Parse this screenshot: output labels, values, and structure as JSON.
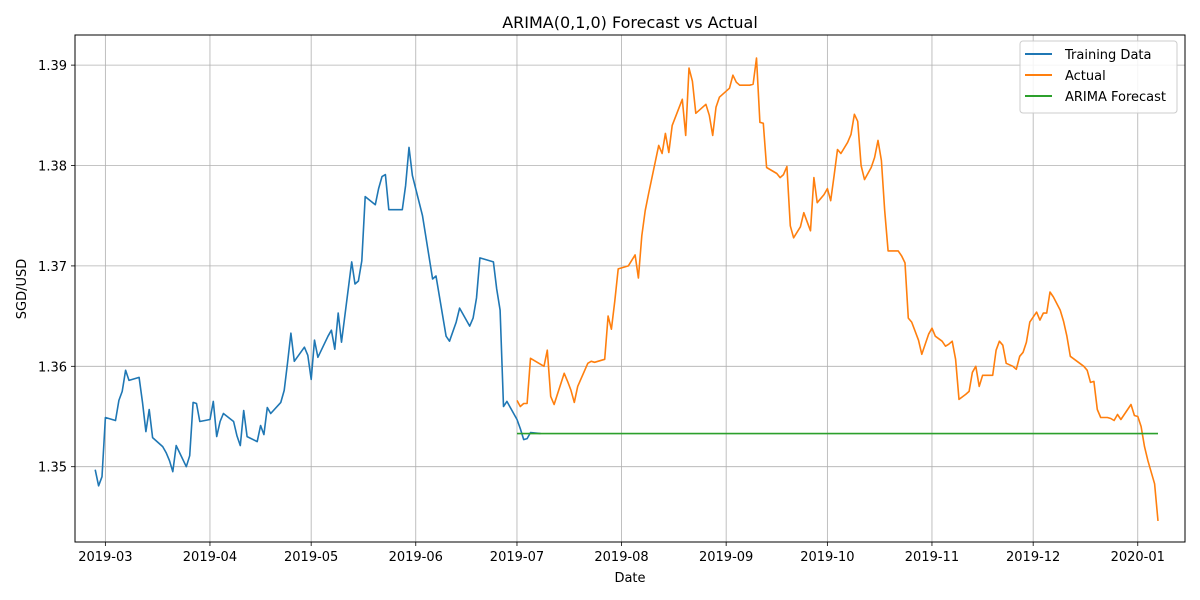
{
  "chart_data": {
    "type": "line",
    "title": "ARIMA(0,1,0) Forecast vs Actual",
    "xlabel": "Date",
    "ylabel": "SGD/USD",
    "xlim": [
      "2019-02-20",
      "2020-01-15"
    ],
    "ylim": [
      1.3425,
      1.393
    ],
    "grid": true,
    "legend_position": "top-right",
    "x_ticks": [
      "2019-03-01",
      "2019-04-01",
      "2019-05-01",
      "2019-06-01",
      "2019-07-01",
      "2019-08-01",
      "2019-09-01",
      "2019-10-01",
      "2019-11-01",
      "2019-12-01",
      "2020-01-01"
    ],
    "x_tick_labels": [
      "2019-03",
      "2019-04",
      "2019-05",
      "2019-06",
      "2019-07",
      "2019-08",
      "2019-09",
      "2019-10",
      "2019-11",
      "2019-12",
      "2020-01"
    ],
    "y_ticks": [
      1.35,
      1.36,
      1.37,
      1.38,
      1.39
    ],
    "y_tick_labels": [
      "1.35",
      "1.36",
      "1.37",
      "1.38",
      "1.39"
    ],
    "series": [
      {
        "name": "Training Data",
        "color": "#1f77b4",
        "points": [
          [
            "2019-02-26",
            1.3497
          ],
          [
            "2019-02-27",
            1.3481
          ],
          [
            "2019-02-28",
            1.349
          ],
          [
            "2019-03-01",
            1.3549
          ],
          [
            "2019-03-04",
            1.3546
          ],
          [
            "2019-03-05",
            1.3566
          ],
          [
            "2019-03-06",
            1.3575
          ],
          [
            "2019-03-07",
            1.3596
          ],
          [
            "2019-03-08",
            1.3586
          ],
          [
            "2019-03-11",
            1.3589
          ],
          [
            "2019-03-12",
            1.3564
          ],
          [
            "2019-03-13",
            1.3535
          ],
          [
            "2019-03-14",
            1.3557
          ],
          [
            "2019-03-15",
            1.3529
          ],
          [
            "2019-03-18",
            1.352
          ],
          [
            "2019-03-19",
            1.3514
          ],
          [
            "2019-03-20",
            1.3506
          ],
          [
            "2019-03-21",
            1.3495
          ],
          [
            "2019-03-22",
            1.3521
          ],
          [
            "2019-03-25",
            1.35
          ],
          [
            "2019-03-26",
            1.3511
          ],
          [
            "2019-03-27",
            1.3564
          ],
          [
            "2019-03-28",
            1.3563
          ],
          [
            "2019-03-29",
            1.3545
          ],
          [
            "2019-04-01",
            1.3547
          ],
          [
            "2019-04-02",
            1.3565
          ],
          [
            "2019-04-03",
            1.353
          ],
          [
            "2019-04-04",
            1.3545
          ],
          [
            "2019-04-05",
            1.3553
          ],
          [
            "2019-04-08",
            1.3545
          ],
          [
            "2019-04-09",
            1.3531
          ],
          [
            "2019-04-10",
            1.3521
          ],
          [
            "2019-04-11",
            1.3556
          ],
          [
            "2019-04-12",
            1.353
          ],
          [
            "2019-04-15",
            1.3525
          ],
          [
            "2019-04-16",
            1.3541
          ],
          [
            "2019-04-17",
            1.3532
          ],
          [
            "2019-04-18",
            1.3559
          ],
          [
            "2019-04-19",
            1.3553
          ],
          [
            "2019-04-22",
            1.3564
          ],
          [
            "2019-04-23",
            1.3576
          ],
          [
            "2019-04-24",
            1.3604
          ],
          [
            "2019-04-25",
            1.3633
          ],
          [
            "2019-04-26",
            1.3605
          ],
          [
            "2019-04-29",
            1.3619
          ],
          [
            "2019-04-30",
            1.3611
          ],
          [
            "2019-05-01",
            1.3587
          ],
          [
            "2019-05-02",
            1.3626
          ],
          [
            "2019-05-03",
            1.3609
          ],
          [
            "2019-05-06",
            1.363
          ],
          [
            "2019-05-07",
            1.3636
          ],
          [
            "2019-05-08",
            1.3617
          ],
          [
            "2019-05-09",
            1.3653
          ],
          [
            "2019-05-10",
            1.3624
          ],
          [
            "2019-05-13",
            1.3704
          ],
          [
            "2019-05-14",
            1.3682
          ],
          [
            "2019-05-15",
            1.3685
          ],
          [
            "2019-05-16",
            1.3705
          ],
          [
            "2019-05-17",
            1.3769
          ],
          [
            "2019-05-20",
            1.3761
          ],
          [
            "2019-05-21",
            1.3777
          ],
          [
            "2019-05-22",
            1.3789
          ],
          [
            "2019-05-23",
            1.3791
          ],
          [
            "2019-05-24",
            1.3756
          ],
          [
            "2019-05-27",
            1.3756
          ],
          [
            "2019-05-28",
            1.3756
          ],
          [
            "2019-05-29",
            1.378
          ],
          [
            "2019-05-30",
            1.3818
          ],
          [
            "2019-05-31",
            1.379
          ],
          [
            "2019-06-03",
            1.375
          ],
          [
            "2019-06-06",
            1.3687
          ],
          [
            "2019-06-07",
            1.369
          ],
          [
            "2019-06-10",
            1.363
          ],
          [
            "2019-06-11",
            1.3625
          ],
          [
            "2019-06-13",
            1.3644
          ],
          [
            "2019-06-14",
            1.3658
          ],
          [
            "2019-06-17",
            1.364
          ],
          [
            "2019-06-18",
            1.3648
          ],
          [
            "2019-06-19",
            1.3668
          ],
          [
            "2019-06-20",
            1.3708
          ],
          [
            "2019-06-24",
            1.3704
          ],
          [
            "2019-06-25",
            1.3677
          ],
          [
            "2019-06-26",
            1.3656
          ],
          [
            "2019-06-27",
            1.356
          ],
          [
            "2019-06-28",
            1.3565
          ],
          [
            "2019-07-01",
            1.3547
          ],
          [
            "2019-07-02",
            1.3538
          ],
          [
            "2019-07-03",
            1.3527
          ],
          [
            "2019-07-04",
            1.3528
          ],
          [
            "2019-07-05",
            1.3534
          ],
          [
            "2019-07-08",
            1.3533
          ]
        ]
      },
      {
        "name": "Actual",
        "color": "#ff7f0e",
        "points": [
          [
            "2019-07-01",
            1.3566
          ],
          [
            "2019-07-02",
            1.356
          ],
          [
            "2019-07-03",
            1.3563
          ],
          [
            "2019-07-04",
            1.3563
          ],
          [
            "2019-07-05",
            1.3608
          ],
          [
            "2019-07-08",
            1.3602
          ],
          [
            "2019-07-09",
            1.36
          ],
          [
            "2019-07-10",
            1.3616
          ],
          [
            "2019-07-11",
            1.357
          ],
          [
            "2019-07-12",
            1.3562
          ],
          [
            "2019-07-15",
            1.3593
          ],
          [
            "2019-07-16",
            1.3585
          ],
          [
            "2019-07-17",
            1.3576
          ],
          [
            "2019-07-18",
            1.3564
          ],
          [
            "2019-07-19",
            1.358
          ],
          [
            "2019-07-22",
            1.3603
          ],
          [
            "2019-07-23",
            1.3605
          ],
          [
            "2019-07-24",
            1.3604
          ],
          [
            "2019-07-25",
            1.3605
          ],
          [
            "2019-07-26",
            1.3606
          ],
          [
            "2019-07-27",
            1.3607
          ],
          [
            "2019-07-28",
            1.365
          ],
          [
            "2019-07-29",
            1.3637
          ],
          [
            "2019-07-30",
            1.3665
          ],
          [
            "2019-07-31",
            1.3697
          ],
          [
            "2019-08-01",
            1.3698
          ],
          [
            "2019-08-02",
            1.3699
          ],
          [
            "2019-08-03",
            1.37
          ],
          [
            "2019-08-05",
            1.3711
          ],
          [
            "2019-08-06",
            1.3688
          ],
          [
            "2019-08-07",
            1.373
          ],
          [
            "2019-08-08",
            1.3755
          ],
          [
            "2019-08-09",
            1.3772
          ],
          [
            "2019-08-12",
            1.382
          ],
          [
            "2019-08-13",
            1.3812
          ],
          [
            "2019-08-14",
            1.3832
          ],
          [
            "2019-08-15",
            1.3813
          ],
          [
            "2019-08-16",
            1.384
          ],
          [
            "2019-08-19",
            1.3866
          ],
          [
            "2019-08-20",
            1.383
          ],
          [
            "2019-08-21",
            1.3897
          ],
          [
            "2019-08-22",
            1.3884
          ],
          [
            "2019-08-23",
            1.3852
          ],
          [
            "2019-08-26",
            1.3861
          ],
          [
            "2019-08-27",
            1.385
          ],
          [
            "2019-08-28",
            1.383
          ],
          [
            "2019-08-29",
            1.3858
          ],
          [
            "2019-08-30",
            1.3868
          ],
          [
            "2019-09-02",
            1.3877
          ],
          [
            "2019-09-03",
            1.389
          ],
          [
            "2019-09-04",
            1.3883
          ],
          [
            "2019-09-05",
            1.388
          ],
          [
            "2019-09-08",
            1.388
          ],
          [
            "2019-09-09",
            1.3881
          ],
          [
            "2019-09-10",
            1.3907
          ],
          [
            "2019-09-11",
            1.3843
          ],
          [
            "2019-09-12",
            1.3842
          ],
          [
            "2019-09-13",
            1.3798
          ],
          [
            "2019-09-16",
            1.3792
          ],
          [
            "2019-09-17",
            1.3788
          ],
          [
            "2019-09-18",
            1.3791
          ],
          [
            "2019-09-19",
            1.3799
          ],
          [
            "2019-09-20",
            1.374
          ],
          [
            "2019-09-21",
            1.3728
          ],
          [
            "2019-09-23",
            1.3739
          ],
          [
            "2019-09-24",
            1.3753
          ],
          [
            "2019-09-25",
            1.3744
          ],
          [
            "2019-09-26",
            1.3735
          ],
          [
            "2019-09-27",
            1.3788
          ],
          [
            "2019-09-28",
            1.3763
          ],
          [
            "2019-09-30",
            1.3771
          ],
          [
            "2019-10-01",
            1.3777
          ],
          [
            "2019-10-02",
            1.3765
          ],
          [
            "2019-10-03",
            1.379
          ],
          [
            "2019-10-04",
            1.3816
          ],
          [
            "2019-10-05",
            1.3812
          ],
          [
            "2019-10-07",
            1.3823
          ],
          [
            "2019-10-08",
            1.3831
          ],
          [
            "2019-10-09",
            1.3851
          ],
          [
            "2019-10-10",
            1.3844
          ],
          [
            "2019-10-11",
            1.38
          ],
          [
            "2019-10-12",
            1.3786
          ],
          [
            "2019-10-14",
            1.3798
          ],
          [
            "2019-10-15",
            1.3808
          ],
          [
            "2019-10-16",
            1.3825
          ],
          [
            "2019-10-17",
            1.3805
          ],
          [
            "2019-10-18",
            1.3755
          ],
          [
            "2019-10-19",
            1.3715
          ],
          [
            "2019-10-21",
            1.3715
          ],
          [
            "2019-10-22",
            1.3715
          ],
          [
            "2019-10-23",
            1.371
          ],
          [
            "2019-10-24",
            1.3703
          ],
          [
            "2019-10-25",
            1.3648
          ],
          [
            "2019-10-26",
            1.3644
          ],
          [
            "2019-10-28",
            1.3626
          ],
          [
            "2019-10-29",
            1.3612
          ],
          [
            "2019-10-30",
            1.3622
          ],
          [
            "2019-10-31",
            1.3632
          ],
          [
            "2019-11-01",
            1.3638
          ],
          [
            "2019-11-02",
            1.363
          ],
          [
            "2019-11-04",
            1.3625
          ],
          [
            "2019-11-05",
            1.362
          ],
          [
            "2019-11-06",
            1.3622
          ],
          [
            "2019-11-07",
            1.3625
          ],
          [
            "2019-11-08",
            1.3607
          ],
          [
            "2019-11-09",
            1.3567
          ],
          [
            "2019-11-11",
            1.3572
          ],
          [
            "2019-11-12",
            1.3575
          ],
          [
            "2019-11-13",
            1.3594
          ],
          [
            "2019-11-14",
            1.36
          ],
          [
            "2019-11-15",
            1.358
          ],
          [
            "2019-11-16",
            1.3591
          ],
          [
            "2019-11-18",
            1.3591
          ],
          [
            "2019-11-19",
            1.3591
          ],
          [
            "2019-11-20",
            1.3616
          ],
          [
            "2019-11-21",
            1.3625
          ],
          [
            "2019-11-22",
            1.3621
          ],
          [
            "2019-11-23",
            1.3603
          ],
          [
            "2019-11-25",
            1.36
          ],
          [
            "2019-11-26",
            1.3597
          ],
          [
            "2019-11-27",
            1.361
          ],
          [
            "2019-11-28",
            1.3614
          ],
          [
            "2019-11-29",
            1.3624
          ],
          [
            "2019-11-30",
            1.3644
          ],
          [
            "2019-12-02",
            1.3654
          ],
          [
            "2019-12-03",
            1.3646
          ],
          [
            "2019-12-04",
            1.3653
          ],
          [
            "2019-12-05",
            1.3653
          ],
          [
            "2019-12-06",
            1.3674
          ],
          [
            "2019-12-07",
            1.3669
          ],
          [
            "2019-12-09",
            1.3656
          ],
          [
            "2019-12-10",
            1.3645
          ],
          [
            "2019-12-11",
            1.363
          ],
          [
            "2019-12-12",
            1.361
          ],
          [
            "2019-12-16",
            1.36
          ],
          [
            "2019-12-17",
            1.3596
          ],
          [
            "2019-12-18",
            1.3584
          ],
          [
            "2019-12-19",
            1.3585
          ],
          [
            "2019-12-20",
            1.3557
          ],
          [
            "2019-12-21",
            1.3549
          ],
          [
            "2019-12-23",
            1.3549
          ],
          [
            "2019-12-24",
            1.3548
          ],
          [
            "2019-12-25",
            1.3546
          ],
          [
            "2019-12-26",
            1.3552
          ],
          [
            "2019-12-27",
            1.3547
          ],
          [
            "2019-12-30",
            1.3562
          ],
          [
            "2019-12-31",
            1.3551
          ],
          [
            "2020-01-01",
            1.355
          ],
          [
            "2020-01-02",
            1.354
          ],
          [
            "2020-01-03",
            1.352
          ],
          [
            "2020-01-04",
            1.3506
          ],
          [
            "2020-01-06",
            1.3483
          ],
          [
            "2020-01-07",
            1.3446
          ]
        ]
      },
      {
        "name": "ARIMA Forecast",
        "color": "#2ca02c",
        "points": [
          [
            "2019-07-01",
            1.3533
          ],
          [
            "2020-01-07",
            1.3533
          ]
        ]
      }
    ]
  }
}
